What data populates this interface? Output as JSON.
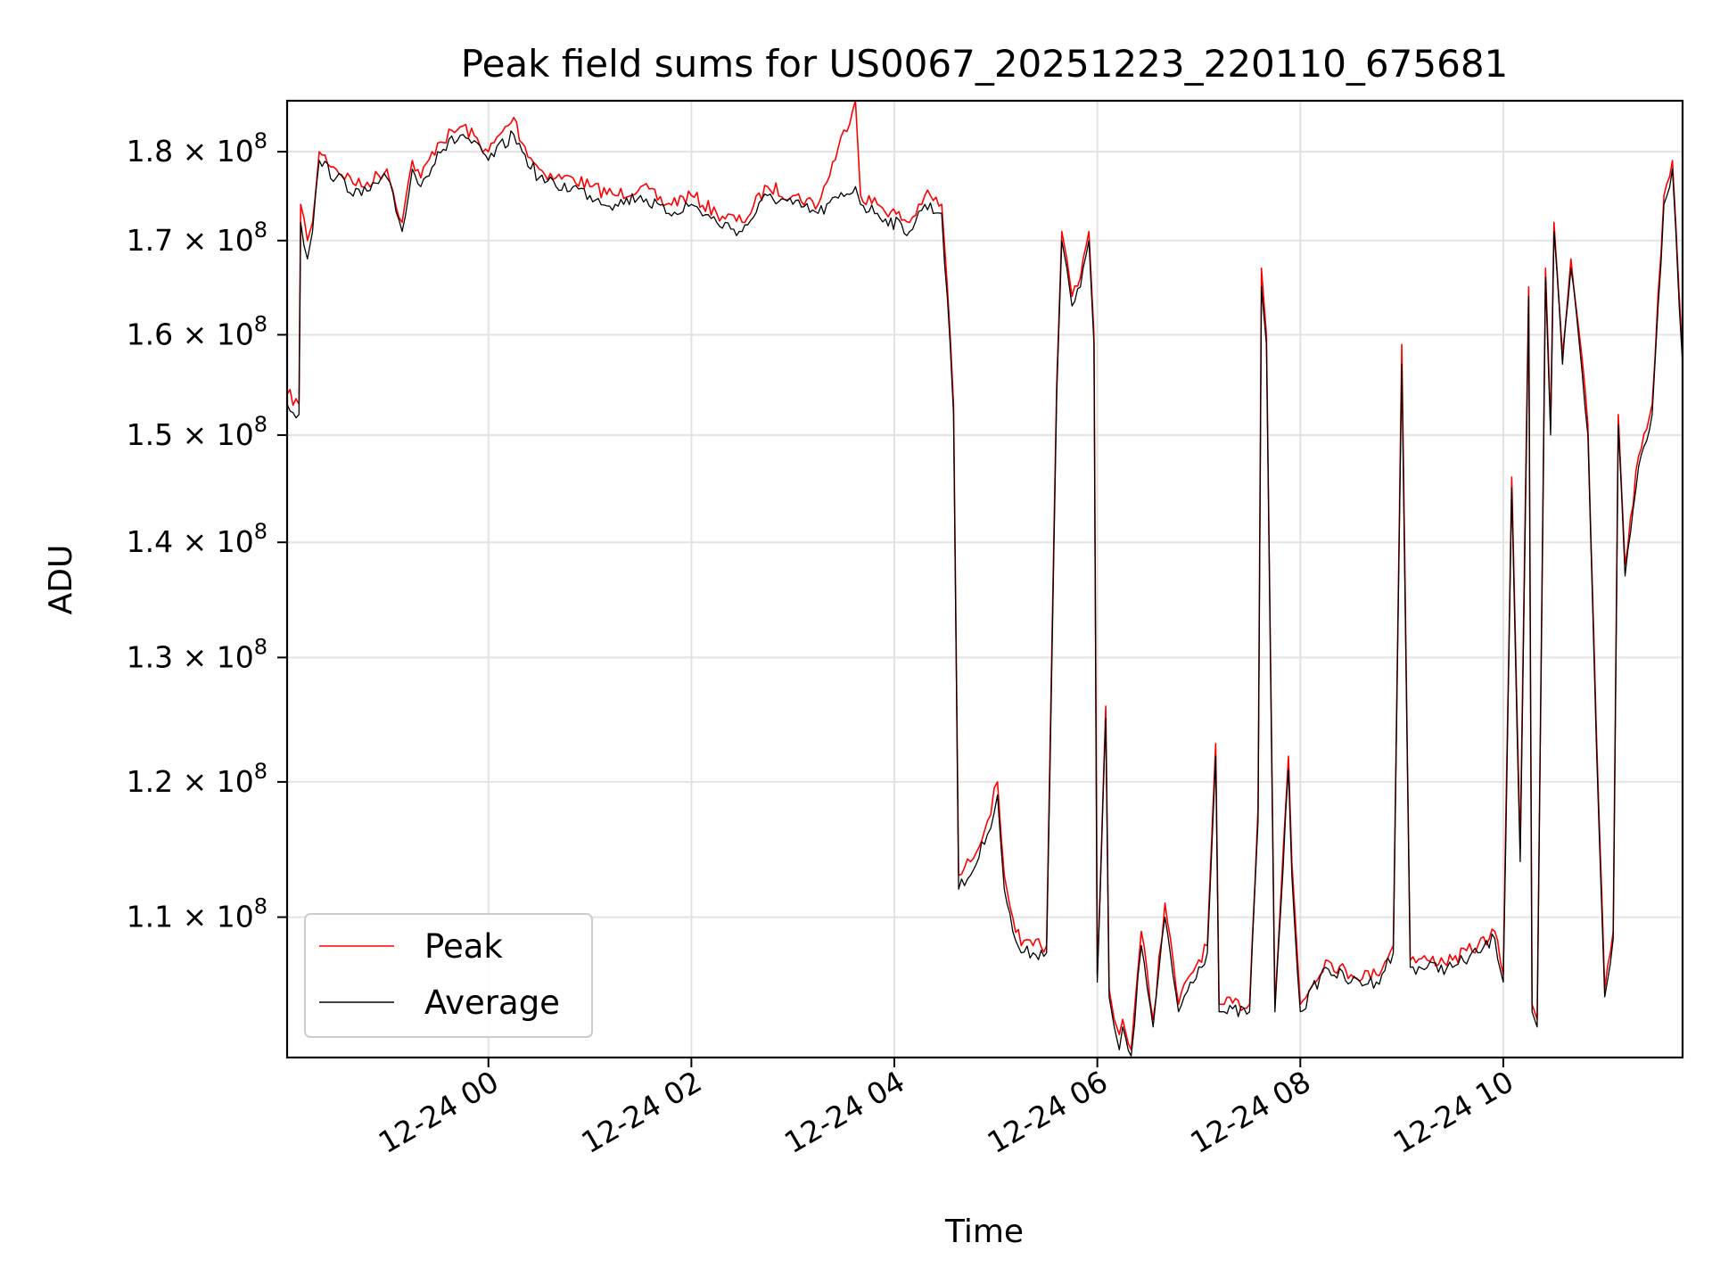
{
  "chart_data": {
    "type": "line",
    "title": "Peak field sums for US0067_20251223_220110_675681",
    "xlabel": "Time",
    "ylabel": "ADU",
    "yscale": "log",
    "x_range": [
      "2025-12-23 22:01",
      "2025-12-24 11:46"
    ],
    "ylim": [
      100500000,
      186000000
    ],
    "x_ticks": [
      "12-24 00",
      "12-24 02",
      "12-24 04",
      "12-24 06",
      "12-24 08",
      "12-24 10"
    ],
    "y_ticks": [
      {
        "value": 110000000,
        "mantissa": "1.1"
      },
      {
        "value": 120000000,
        "mantissa": "1.2"
      },
      {
        "value": 130000000,
        "mantissa": "1.3"
      },
      {
        "value": 140000000,
        "mantissa": "1.4"
      },
      {
        "value": 150000000,
        "mantissa": "1.5"
      },
      {
        "value": 160000000,
        "mantissa": "1.6"
      },
      {
        "value": 170000000,
        "mantissa": "1.7"
      },
      {
        "value": 180000000,
        "mantissa": "1.8"
      }
    ],
    "y_tick_suffix": "× 10",
    "y_tick_exponent": "8",
    "grid": true,
    "legend_position": "lower-left",
    "series": [
      {
        "name": "Peak",
        "color": "#ff0000",
        "x": [
          "2025-12-23 22:01",
          "2025-12-23 22:08",
          "2025-12-23 22:09",
          "2025-12-23 22:13",
          "2025-12-23 22:16",
          "2025-12-23 22:20",
          "2025-12-23 22:30",
          "2025-12-23 22:45",
          "2025-12-23 23:00",
          "2025-12-23 23:09",
          "2025-12-23 23:15",
          "2025-12-23 23:20",
          "2025-12-23 23:30",
          "2025-12-23 23:45",
          "2025-12-24 00:00",
          "2025-12-24 00:15",
          "2025-12-24 00:20",
          "2025-12-24 00:30",
          "2025-12-24 00:40",
          "2025-12-24 00:50",
          "2025-12-24 01:00",
          "2025-12-24 01:15",
          "2025-12-24 01:30",
          "2025-12-24 01:45",
          "2025-12-24 02:00",
          "2025-12-24 02:15",
          "2025-12-24 02:30",
          "2025-12-24 02:45",
          "2025-12-24 03:00",
          "2025-12-24 03:15",
          "2025-12-24 03:37",
          "2025-12-24 03:40",
          "2025-12-24 03:50",
          "2025-12-24 04:09",
          "2025-12-24 04:18",
          "2025-12-24 04:28",
          "2025-12-24 04:33",
          "2025-12-24 04:35",
          "2025-12-24 04:38",
          "2025-12-24 04:45",
          "2025-12-24 04:55",
          "2025-12-24 05:01",
          "2025-12-24 05:05",
          "2025-12-24 05:10",
          "2025-12-24 05:15",
          "2025-12-24 05:22",
          "2025-12-24 05:30",
          "2025-12-24 05:36",
          "2025-12-24 05:39",
          "2025-12-24 05:42",
          "2025-12-24 05:45",
          "2025-12-24 05:50",
          "2025-12-24 05:55",
          "2025-12-24 05:58",
          "2025-12-24 06:00",
          "2025-12-24 06:05",
          "2025-12-24 06:07",
          "2025-12-24 06:10",
          "2025-12-24 06:13",
          "2025-12-24 06:15",
          "2025-12-24 06:20",
          "2025-12-24 06:26",
          "2025-12-24 06:33",
          "2025-12-24 06:40",
          "2025-12-24 06:48",
          "2025-12-24 06:55",
          "2025-12-24 07:05",
          "2025-12-24 07:10",
          "2025-12-24 07:12",
          "2025-12-24 07:15",
          "2025-12-24 07:30",
          "2025-12-24 07:35",
          "2025-12-24 07:37",
          "2025-12-24 07:40",
          "2025-12-24 07:45",
          "2025-12-24 07:53",
          "2025-12-24 07:55",
          "2025-12-24 08:00",
          "2025-12-24 08:15",
          "2025-12-24 08:30",
          "2025-12-24 08:45",
          "2025-12-24 08:55",
          "2025-12-24 09:00",
          "2025-12-24 09:05",
          "2025-12-24 09:15",
          "2025-12-24 09:30",
          "2025-12-24 09:45",
          "2025-12-24 09:55",
          "2025-12-24 10:00",
          "2025-12-24 10:05",
          "2025-12-24 10:10",
          "2025-12-24 10:15",
          "2025-12-24 10:17",
          "2025-12-24 10:20",
          "2025-12-24 10:25",
          "2025-12-24 10:28",
          "2025-12-24 10:30",
          "2025-12-24 10:35",
          "2025-12-24 10:40",
          "2025-12-24 10:45",
          "2025-12-24 10:50",
          "2025-12-24 10:55",
          "2025-12-24 11:00",
          "2025-12-24 11:05",
          "2025-12-24 11:08",
          "2025-12-24 11:12",
          "2025-12-24 11:20",
          "2025-12-24 11:28",
          "2025-12-24 11:35",
          "2025-12-24 11:40",
          "2025-12-24 11:46"
        ],
        "y": [
          154000000,
          153000000,
          174000000,
          170000000,
          172000000,
          180000000,
          178000000,
          176000000,
          178000000,
          172000000,
          179000000,
          177000000,
          181000000,
          183000000,
          180000000,
          184000000,
          181000000,
          178000000,
          177000000,
          177000000,
          176000000,
          175000000,
          176000000,
          174000000,
          175000000,
          173000000,
          172000000,
          176000000,
          175000000,
          174000000,
          186000000,
          175000000,
          174000000,
          172000000,
          175000000,
          174000000,
          160000000,
          153000000,
          113000000,
          114000000,
          117000000,
          120000000,
          113000000,
          110000000,
          108000000,
          108000000,
          108000000,
          155000000,
          171000000,
          168000000,
          164000000,
          166000000,
          171000000,
          160000000,
          106000000,
          126000000,
          105000000,
          103000000,
          102000000,
          103000000,
          101000000,
          109000000,
          103000000,
          111000000,
          104000000,
          106000000,
          108000000,
          123000000,
          104000000,
          104000000,
          104000000,
          118000000,
          167000000,
          160000000,
          104000000,
          122000000,
          114000000,
          104000000,
          107000000,
          106000000,
          106000000,
          108000000,
          159000000,
          107000000,
          107000000,
          107000000,
          108000000,
          109000000,
          106000000,
          146000000,
          115000000,
          165000000,
          104000000,
          103000000,
          167000000,
          151000000,
          172000000,
          158000000,
          168000000,
          160000000,
          151000000,
          124000000,
          105000000,
          109000000,
          152000000,
          138000000,
          148000000,
          153000000,
          175000000,
          179000000,
          158000000
        ]
      },
      {
        "name": "Average",
        "color": "#000000",
        "x": [
          "2025-12-23 22:01",
          "2025-12-23 22:08",
          "2025-12-23 22:09",
          "2025-12-23 22:13",
          "2025-12-23 22:16",
          "2025-12-23 22:20",
          "2025-12-23 22:30",
          "2025-12-23 22:45",
          "2025-12-23 23:00",
          "2025-12-23 23:09",
          "2025-12-23 23:15",
          "2025-12-23 23:20",
          "2025-12-23 23:30",
          "2025-12-23 23:45",
          "2025-12-24 00:00",
          "2025-12-24 00:15",
          "2025-12-24 00:20",
          "2025-12-24 00:30",
          "2025-12-24 00:40",
          "2025-12-24 00:50",
          "2025-12-24 01:00",
          "2025-12-24 01:15",
          "2025-12-24 01:30",
          "2025-12-24 01:45",
          "2025-12-24 02:00",
          "2025-12-24 02:15",
          "2025-12-24 02:30",
          "2025-12-24 02:45",
          "2025-12-24 03:00",
          "2025-12-24 03:15",
          "2025-12-24 03:37",
          "2025-12-24 03:40",
          "2025-12-24 03:50",
          "2025-12-24 04:09",
          "2025-12-24 04:18",
          "2025-12-24 04:28",
          "2025-12-24 04:33",
          "2025-12-24 04:35",
          "2025-12-24 04:38",
          "2025-12-24 04:45",
          "2025-12-24 04:55",
          "2025-12-24 05:01",
          "2025-12-24 05:05",
          "2025-12-24 05:10",
          "2025-12-24 05:15",
          "2025-12-24 05:22",
          "2025-12-24 05:30",
          "2025-12-24 05:36",
          "2025-12-24 05:39",
          "2025-12-24 05:42",
          "2025-12-24 05:45",
          "2025-12-24 05:50",
          "2025-12-24 05:55",
          "2025-12-24 05:58",
          "2025-12-24 06:00",
          "2025-12-24 06:05",
          "2025-12-24 06:07",
          "2025-12-24 06:10",
          "2025-12-24 06:13",
          "2025-12-24 06:15",
          "2025-12-24 06:20",
          "2025-12-24 06:26",
          "2025-12-24 06:33",
          "2025-12-24 06:40",
          "2025-12-24 06:48",
          "2025-12-24 06:55",
          "2025-12-24 07:05",
          "2025-12-24 07:10",
          "2025-12-24 07:12",
          "2025-12-24 07:15",
          "2025-12-24 07:30",
          "2025-12-24 07:35",
          "2025-12-24 07:37",
          "2025-12-24 07:40",
          "2025-12-24 07:45",
          "2025-12-24 07:53",
          "2025-12-24 07:55",
          "2025-12-24 08:00",
          "2025-12-24 08:15",
          "2025-12-24 08:30",
          "2025-12-24 08:45",
          "2025-12-24 08:55",
          "2025-12-24 09:00",
          "2025-12-24 09:05",
          "2025-12-24 09:15",
          "2025-12-24 09:30",
          "2025-12-24 09:45",
          "2025-12-24 09:55",
          "2025-12-24 10:00",
          "2025-12-24 10:05",
          "2025-12-24 10:10",
          "2025-12-24 10:15",
          "2025-12-24 10:17",
          "2025-12-24 10:20",
          "2025-12-24 10:25",
          "2025-12-24 10:28",
          "2025-12-24 10:30",
          "2025-12-24 10:35",
          "2025-12-24 10:40",
          "2025-12-24 10:45",
          "2025-12-24 10:50",
          "2025-12-24 10:55",
          "2025-12-24 11:00",
          "2025-12-24 11:05",
          "2025-12-24 11:08",
          "2025-12-24 11:12",
          "2025-12-24 11:20",
          "2025-12-24 11:28",
          "2025-12-24 11:35",
          "2025-12-24 11:40",
          "2025-12-24 11:46"
        ],
        "y": [
          153000000,
          152000000,
          172000000,
          168000000,
          171000000,
          179000000,
          177000000,
          175000000,
          177000000,
          171000000,
          178000000,
          176000000,
          180000000,
          182000000,
          179000000,
          182000000,
          180000000,
          177000000,
          176000000,
          176000000,
          175000000,
          174000000,
          175000000,
          173000000,
          174000000,
          172000000,
          171000000,
          175000000,
          174000000,
          173000000,
          176000000,
          174000000,
          173000000,
          171000000,
          174000000,
          173000000,
          159000000,
          152000000,
          112000000,
          113000000,
          116000000,
          119000000,
          112000000,
          109000000,
          107500000,
          107500000,
          107500000,
          154000000,
          170000000,
          167000000,
          163000000,
          165000000,
          170000000,
          159000000,
          105500000,
          125000000,
          104500000,
          102500000,
          101000000,
          102500000,
          100600000,
          108000000,
          102500000,
          110000000,
          103500000,
          105500000,
          107500000,
          122000000,
          103500000,
          103500000,
          103500000,
          117000000,
          165000000,
          159000000,
          103500000,
          121000000,
          113000000,
          103500000,
          106500000,
          105500000,
          105500000,
          107500000,
          157000000,
          106500000,
          106500000,
          106500000,
          107500000,
          108500000,
          105500000,
          145000000,
          114000000,
          164000000,
          103500000,
          102500000,
          166000000,
          150000000,
          171000000,
          157000000,
          167000000,
          159000000,
          150000000,
          123000000,
          104500000,
          108500000,
          151000000,
          137000000,
          147000000,
          152000000,
          174000000,
          178000000,
          157000000
        ]
      }
    ]
  }
}
